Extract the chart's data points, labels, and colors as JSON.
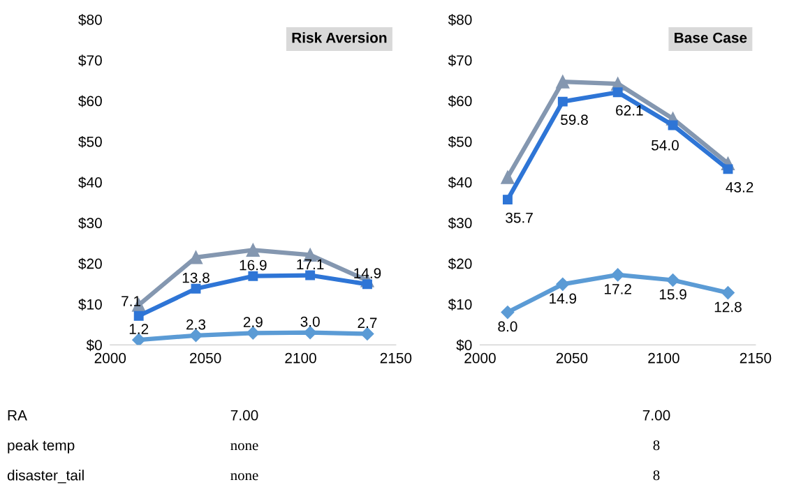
{
  "chart_data": [
    {
      "type": "line",
      "title": "Risk Aversion",
      "x": [
        2015,
        2045,
        2075,
        2105,
        2135
      ],
      "xlim": [
        2000,
        2150
      ],
      "xticks": [
        2000,
        2050,
        2100,
        2150
      ],
      "ylim": [
        0,
        80
      ],
      "yticks": [
        {
          "value": 0,
          "label": "$0"
        },
        {
          "value": 10,
          "label": "$10"
        },
        {
          "value": 20,
          "label": "$20"
        },
        {
          "value": 30,
          "label": "$30"
        },
        {
          "value": 40,
          "label": "$40"
        },
        {
          "value": 50,
          "label": "$50"
        },
        {
          "value": 60,
          "label": "$60"
        },
        {
          "value": 70,
          "label": "$70"
        },
        {
          "value": 80,
          "label": "$80"
        }
      ],
      "grid": false,
      "legend": false,
      "series": [
        {
          "color": "#8497b0",
          "marker": "triangle",
          "values": [
            9.8,
            21.5,
            23.3,
            22.1,
            15.8
          ]
        },
        {
          "color": "#2e75d6",
          "marker": "square",
          "values": [
            7.1,
            13.8,
            16.9,
            17.1,
            14.9
          ],
          "value_labels": [
            "7.1",
            "13.8",
            "16.9",
            "17.1",
            "14.9"
          ]
        },
        {
          "color": "#5b9bd5",
          "marker": "diamond",
          "values": [
            1.2,
            2.3,
            2.9,
            3.0,
            2.7
          ],
          "value_labels": [
            "1.2",
            "2.3",
            "2.9",
            "3.0",
            "2.7"
          ]
        }
      ],
      "annotations": [
        "RA",
        "peak temp",
        "disaster_tail",
        "7.00",
        "none",
        "none"
      ]
    },
    {
      "type": "line",
      "title": "Base Case",
      "x": [
        2015,
        2045,
        2075,
        2105,
        2135
      ],
      "xlim": [
        2000,
        2150
      ],
      "xticks": [
        2000,
        2050,
        2100,
        2150
      ],
      "ylim": [
        0,
        80
      ],
      "yticks": [
        {
          "value": 0,
          "label": "$0"
        },
        {
          "value": 10,
          "label": "$10"
        },
        {
          "value": 20,
          "label": "$20"
        },
        {
          "value": 30,
          "label": "$30"
        },
        {
          "value": 40,
          "label": "$40"
        },
        {
          "value": 50,
          "label": "$50"
        },
        {
          "value": 60,
          "label": "$60"
        },
        {
          "value": 70,
          "label": "$70"
        },
        {
          "value": 80,
          "label": "$80"
        }
      ],
      "grid": false,
      "legend": false,
      "series": [
        {
          "color": "#8497b0",
          "marker": "triangle",
          "values": [
            41.2,
            64.7,
            64.2,
            55.6,
            44.6
          ]
        },
        {
          "color": "#2e75d6",
          "marker": "square",
          "values": [
            35.7,
            59.8,
            62.1,
            54.0,
            43.2
          ],
          "value_labels": [
            "35.7",
            "59.8",
            "62.1",
            "54.0",
            "43.2"
          ]
        },
        {
          "color": "#5b9bd5",
          "marker": "diamond",
          "values": [
            8.0,
            14.9,
            17.2,
            15.9,
            12.8
          ],
          "value_labels": [
            "8.0",
            "14.9",
            "17.2",
            "15.9",
            "12.8"
          ]
        }
      ],
      "annotations": [
        "7.00",
        "8",
        "8"
      ]
    }
  ]
}
